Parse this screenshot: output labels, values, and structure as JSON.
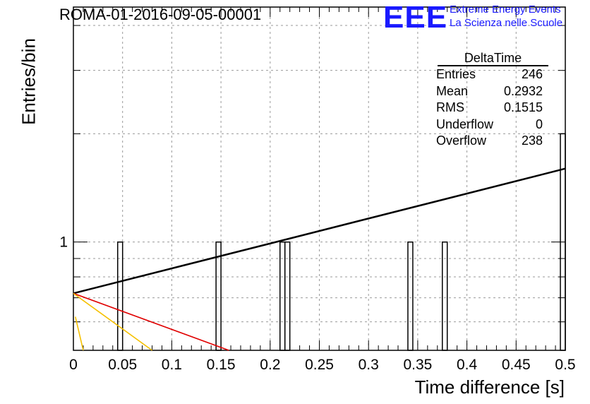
{
  "header": {
    "title": "ROMA-01-2016-09-05-00001",
    "logo_letters": "EEE",
    "logo_line1": "Extreme Energy Events",
    "logo_line2": "La Scienza nelle Scuole"
  },
  "stats": {
    "title": "DeltaTime",
    "rows": [
      {
        "label": "Entries",
        "value": "246"
      },
      {
        "label": "Mean",
        "value": "0.2932"
      },
      {
        "label": "RMS",
        "value": "0.1515"
      },
      {
        "label": "Underflow",
        "value": "0"
      },
      {
        "label": "Overflow",
        "value": "238"
      }
    ]
  },
  "chart_data": {
    "type": "bar",
    "title": "ROMA-01-2016-09-05-00001",
    "xlabel": "Time difference [s]",
    "ylabel": "Entries/bin",
    "xlim": [
      0,
      0.5
    ],
    "ylim": [
      0.5,
      4.5
    ],
    "yscale": "log",
    "grid": true,
    "x_ticks": [
      0,
      0.05,
      0.1,
      0.15,
      0.2,
      0.25,
      0.3,
      0.35,
      0.4,
      0.45,
      0.5
    ],
    "x_tick_labels": [
      "0",
      "0.05",
      "0.1",
      "0.15",
      "0.2",
      "0.25",
      "0.3",
      "0.35",
      "0.4",
      "0.45",
      "0.5"
    ],
    "y_tick_labels": [
      {
        "value": 1,
        "label": "1"
      }
    ],
    "bin_width": 0.005,
    "bins": [
      {
        "x": 0.0475,
        "y": 1
      },
      {
        "x": 0.1475,
        "y": 1
      },
      {
        "x": 0.2125,
        "y": 1
      },
      {
        "x": 0.2175,
        "y": 1
      },
      {
        "x": 0.3425,
        "y": 1
      },
      {
        "x": 0.3775,
        "y": 1
      },
      {
        "x": 0.4975,
        "y": 2
      }
    ],
    "fit_lines": [
      {
        "color": "#000000",
        "points": [
          [
            0,
            0.72
          ],
          [
            0.5,
            1.6
          ]
        ]
      },
      {
        "color": "#e00000",
        "points": [
          [
            0,
            0.72
          ],
          [
            0.158,
            0.5
          ]
        ]
      },
      {
        "color": "#f5c000",
        "points": [
          [
            0,
            0.72
          ],
          [
            0.08,
            0.5
          ]
        ]
      },
      {
        "color": "#f5c000",
        "points": [
          [
            0.002,
            0.62
          ],
          [
            0.01,
            0.5
          ]
        ]
      }
    ]
  }
}
